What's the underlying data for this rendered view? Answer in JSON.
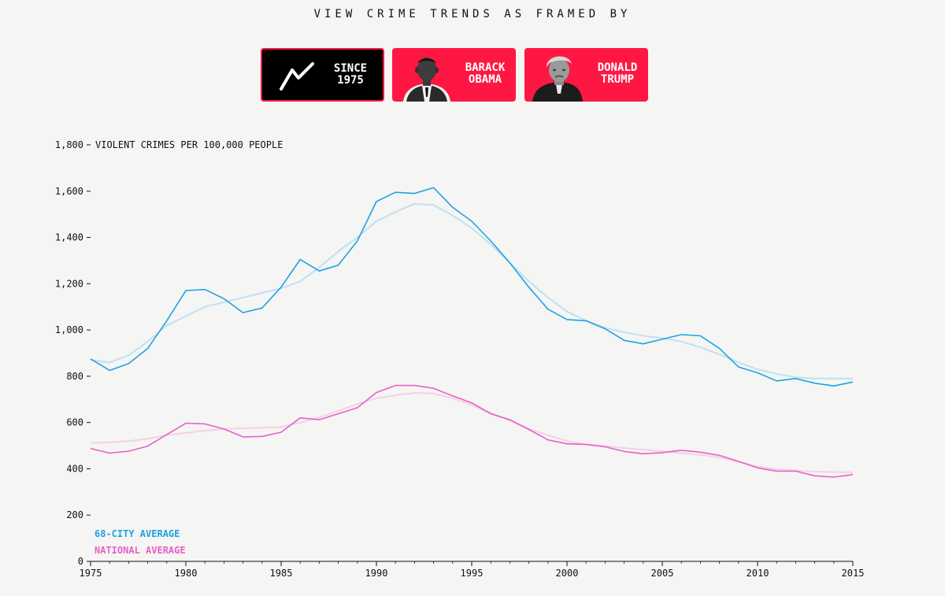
{
  "header": {
    "title": "VIEW CRIME TRENDS AS FRAMED BY"
  },
  "buttons": [
    {
      "label": "SINCE\n1975",
      "icon": "trend-line-icon",
      "active": true
    },
    {
      "label": "BARACK\nOBAMA",
      "icon": "obama-portrait",
      "active": false
    },
    {
      "label": "DONALD\nTRUMP",
      "icon": "trump-portrait",
      "active": false
    }
  ],
  "colors": {
    "accent": "#ff1744",
    "city": "#1fa3e4",
    "city_trend": "#bfe0f5",
    "national": "#e861c8",
    "national_trend": "#f5cfe9",
    "background": "#f5f5f3"
  },
  "chart_data": {
    "type": "line",
    "ylabel": "VIOLENT CRIMES PER 100,000 PEOPLE",
    "xlim": [
      1975,
      2015
    ],
    "ylim": [
      0,
      1800
    ],
    "x_ticks": [
      "1975",
      "1980",
      "1985",
      "1990",
      "1995",
      "2000",
      "2005",
      "2010",
      "2015"
    ],
    "y_ticks": [
      "0",
      "200",
      "400",
      "600",
      "800",
      "1,000",
      "1,200",
      "1,400",
      "1,600",
      "1,800"
    ],
    "grid": false,
    "legend_position": "bottom-left",
    "x": [
      1975,
      1976,
      1977,
      1978,
      1979,
      1980,
      1981,
      1982,
      1983,
      1984,
      1985,
      1986,
      1987,
      1988,
      1989,
      1990,
      1991,
      1992,
      1993,
      1994,
      1995,
      1996,
      1997,
      1998,
      1999,
      2000,
      2001,
      2002,
      2003,
      2004,
      2005,
      2006,
      2007,
      2008,
      2009,
      2010,
      2011,
      2012,
      2013,
      2014,
      2015
    ],
    "series": [
      {
        "name": "68-CITY AVERAGE",
        "color": "#1fa3e4",
        "values": [
          875,
          825,
          855,
          920,
          1040,
          1170,
          1175,
          1135,
          1075,
          1095,
          1185,
          1305,
          1255,
          1280,
          1385,
          1555,
          1595,
          1590,
          1615,
          1530,
          1470,
          1385,
          1290,
          1185,
          1090,
          1045,
          1040,
          1005,
          955,
          940,
          960,
          980,
          975,
          920,
          840,
          815,
          780,
          790,
          770,
          758,
          775
        ]
      },
      {
        "name": "NATIONAL AVERAGE",
        "color": "#e861c8",
        "values": [
          488,
          468,
          476,
          498,
          548,
          597,
          594,
          572,
          538,
          540,
          558,
          620,
          612,
          638,
          664,
          730,
          760,
          760,
          748,
          715,
          685,
          638,
          612,
          570,
          525,
          508,
          505,
          495,
          475,
          465,
          470,
          480,
          472,
          458,
          432,
          404,
          390,
          390,
          370,
          364,
          375
        ]
      }
    ],
    "trends": [
      {
        "color": "#bfe0f5",
        "values": [
          870,
          860,
          890,
          950,
          1020,
          1060,
          1100,
          1120,
          1140,
          1160,
          1180,
          1210,
          1270,
          1340,
          1400,
          1470,
          1510,
          1545,
          1540,
          1495,
          1440,
          1370,
          1290,
          1210,
          1140,
          1080,
          1040,
          1010,
          990,
          975,
          965,
          950,
          925,
          895,
          860,
          830,
          810,
          795,
          790,
          790,
          790
        ]
      },
      {
        "color": "#f5cfe9",
        "values": [
          512,
          514,
          520,
          530,
          545,
          555,
          565,
          572,
          575,
          577,
          581,
          600,
          622,
          650,
          680,
          705,
          718,
          728,
          725,
          705,
          675,
          640,
          608,
          573,
          545,
          520,
          505,
          498,
          490,
          482,
          476,
          468,
          460,
          450,
          430,
          410,
          398,
          392,
          388,
          386,
          385
        ]
      }
    ]
  }
}
